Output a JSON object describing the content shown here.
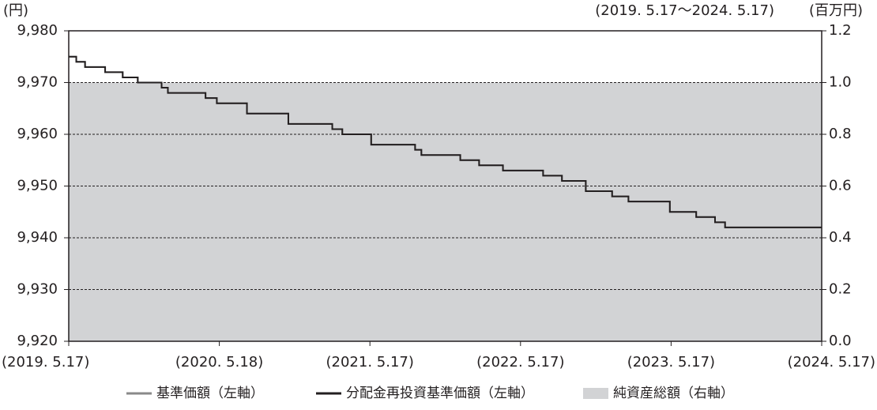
{
  "chart_data": {
    "type": "line",
    "left_unit": "(円)",
    "right_unit": "(百万円)",
    "period": "(2019. 5.17～2024. 5.17)",
    "xlim": [
      0,
      60
    ],
    "xticks": [
      {
        "value": 0,
        "label": "(2019. 5.17)"
      },
      {
        "value": 12,
        "label": "(2020. 5.18)"
      },
      {
        "value": 24,
        "label": "(2021. 5.17)"
      },
      {
        "value": 36,
        "label": "(2022. 5.17)"
      },
      {
        "value": 48,
        "label": "(2023. 5.17)"
      },
      {
        "value": 60,
        "label": "(2024. 5.17)"
      }
    ],
    "ylim": [
      9920,
      9980
    ],
    "yticks": [
      {
        "value": 9920,
        "label": "9,920"
      },
      {
        "value": 9930,
        "label": "9,930"
      },
      {
        "value": 9940,
        "label": "9,940"
      },
      {
        "value": 9950,
        "label": "9,950"
      },
      {
        "value": 9960,
        "label": "9,960"
      },
      {
        "value": 9970,
        "label": "9,970"
      },
      {
        "value": 9980,
        "label": "9,980"
      }
    ],
    "y2lim": [
      0,
      1.2
    ],
    "y2ticks": [
      {
        "value": 0,
        "label": "0.0"
      },
      0.2,
      0.4,
      0.6,
      0.8,
      {
        "value": 1,
        "label": "1.0"
      },
      1.2
    ],
    "grid": true,
    "x": [
      0,
      0.6,
      0.6,
      1.3,
      1.3,
      2.9,
      2.9,
      4.3,
      4.3,
      5.5,
      5.5,
      7.4,
      7.4,
      7.9,
      7.9,
      10.9,
      10.9,
      11.8,
      11.8,
      14.2,
      14.2,
      17.5,
      17.5,
      21.0,
      21.0,
      21.8,
      21.8,
      24.1,
      24.1,
      27.6,
      27.6,
      28.1,
      28.1,
      31.2,
      31.2,
      32.7,
      32.7,
      34.6,
      34.6,
      37.8,
      37.8,
      39.3,
      39.3,
      41.2,
      41.2,
      43.3,
      43.3,
      44.6,
      44.6,
      47.9,
      47.9,
      50.0,
      50.0,
      51.5,
      51.5,
      52.3,
      52.3,
      60
    ],
    "area": {
      "name": "純資産総額（右軸）",
      "color": "#d2d3d5",
      "axis": "y2",
      "x": [
        0,
        60
      ],
      "values": [
        1,
        1
      ]
    },
    "series": [
      {
        "name": "基準価額（左軸）",
        "color": "#8a8a8a",
        "values": [
          9975,
          9975,
          9974,
          9974,
          9973,
          9973,
          9972,
          9972,
          9971,
          9971,
          9970,
          9970,
          9969,
          9969,
          9968,
          9968,
          9967,
          9967,
          9966,
          9966,
          9964,
          9964,
          9962,
          9962,
          9961,
          9961,
          9960,
          9960,
          9958,
          9958,
          9957,
          9957,
          9956,
          9956,
          9955,
          9955,
          9954,
          9954,
          9953,
          9953,
          9952,
          9952,
          9951,
          9951,
          9949,
          9949,
          9948,
          9948,
          9947,
          9947,
          9945,
          9945,
          9944,
          9944,
          9943,
          9943,
          9942,
          9942
        ]
      },
      {
        "name": "分配金再投資基準価額（左軸）",
        "color": "#231f20",
        "values": [
          9975,
          9975,
          9974,
          9974,
          9973,
          9973,
          9972,
          9972,
          9971,
          9971,
          9970,
          9970,
          9969,
          9969,
          9968,
          9968,
          9967,
          9967,
          9966,
          9966,
          9964,
          9964,
          9962,
          9962,
          9961,
          9961,
          9960,
          9960,
          9958,
          9958,
          9957,
          9957,
          9956,
          9956,
          9955,
          9955,
          9954,
          9954,
          9953,
          9953,
          9952,
          9952,
          9951,
          9951,
          9949,
          9949,
          9948,
          9948,
          9947,
          9947,
          9945,
          9945,
          9944,
          9944,
          9943,
          9943,
          9942,
          9942
        ]
      }
    ]
  }
}
